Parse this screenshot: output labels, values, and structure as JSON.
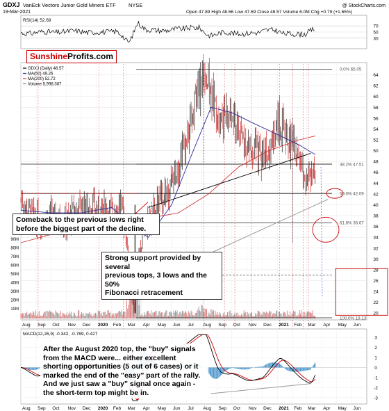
{
  "header": {
    "symbol": "GDXJ",
    "name": "VanEck Vectors Junior Gold Miners ETF",
    "exchange": "NYSE",
    "date": "19-Mar-2021",
    "copyright": "@ StockCharts.com",
    "quote": "Open 47.89  High 48.66  Low 47.69  Close 48.57  Volume 6.0M  Chg +0.79 (+1.65%)"
  },
  "brand": {
    "part1": "Sunshine",
    "part2": "Profits.com"
  },
  "rsi_panel": {
    "label": "RSI(14) 52.69",
    "ticks": [
      "70",
      "50",
      "30"
    ],
    "levels": [
      70,
      50,
      30
    ]
  },
  "price_panel": {
    "legend": [
      "GDXJ (Daily) 48.57",
      "MA(50) 49.26",
      "MA(200) 52.72",
      "Volume 5,998,387"
    ],
    "y_ticks": [
      20,
      22,
      24,
      26,
      28,
      30,
      32,
      34,
      36,
      38,
      40,
      42,
      44,
      46,
      48,
      50,
      52,
      54,
      56,
      58,
      60,
      62,
      64
    ],
    "fib_labels": [
      "0.0% 65.05",
      "38.2% 47.51",
      "50.0% 42.09",
      "61.8% 36.67",
      "100.0% 19.13"
    ],
    "fib_levels": [
      65.05,
      47.51,
      42.09,
      36.67,
      19.13
    ],
    "volume_ticks": [
      "90M",
      "80M",
      "70M",
      "60M",
      "50M",
      "40M",
      "30M",
      "20M",
      "10M"
    ]
  },
  "macd_panel": {
    "label": "MACD(12,26,9) -0.342, -0.769, 0.427",
    "y_ticks": [
      "3",
      "2",
      "1",
      "0",
      "-1",
      "-2",
      "-3"
    ]
  },
  "x_axis": {
    "labels": [
      "Aug",
      "Sep",
      "Oct",
      "Nov",
      "Dec",
      "2020",
      "Feb",
      "Mar",
      "Apr",
      "May",
      "Jun",
      "Jul",
      "Aug",
      "Sep",
      "Oct",
      "Nov",
      "Dec",
      "2021",
      "Feb",
      "Mar",
      "Apr",
      "May",
      "Jun"
    ]
  },
  "callouts": {
    "comeback": [
      "Comeback to the previous lows right",
      "before the biggest part of the decline."
    ],
    "support": [
      "Strong support provided by several",
      "previous tops, 3 lows and the 50%",
      "Fibonacci retracement"
    ],
    "macd": [
      "After the August 2020 top, the \"buy\" signals",
      "from the MACD were... either excellent",
      "shorting opportunities (5 out of 6 cases) or it",
      "marked the end of the \"easy\" part of the rally.",
      "And we just saw a \"buy\" signal once again -",
      "the short-term top might be in."
    ]
  },
  "chart_data": {
    "type": "line",
    "series": [
      {
        "name": "GDXJ (Daily) 48.57",
        "x": [
          "2019-08-01",
          "2019-09-01",
          "2019-10-01",
          "2019-11-01",
          "2019-12-01",
          "2020-01-01",
          "2020-02-01",
          "2020-02-20",
          "2020-03-01",
          "2020-03-16",
          "2020-04-01",
          "2020-05-01",
          "2020-06-01",
          "2020-07-01",
          "2020-08-05",
          "2020-09-01",
          "2020-10-01",
          "2020-11-01",
          "2020-12-01",
          "2021-01-05",
          "2021-02-01",
          "2021-03-08",
          "2021-03-19"
        ],
        "values": [
          41,
          37,
          38,
          37,
          40,
          39,
          39,
          40,
          35,
          20.5,
          34,
          40,
          44,
          52,
          65,
          57,
          56,
          51,
          49,
          55,
          51,
          44.5,
          48.57
        ]
      },
      {
        "name": "MA(50) 49.26",
        "x": [
          "2019-08-01",
          "2019-10-01",
          "2019-12-01",
          "2020-02-01",
          "2020-03-15",
          "2020-04-15",
          "2020-06-01",
          "2020-07-15",
          "2020-08-20",
          "2020-10-01",
          "2020-11-15",
          "2021-01-01",
          "2021-02-15",
          "2021-03-19"
        ],
        "values": [
          39,
          38.5,
          38.5,
          39.5,
          36,
          34,
          40,
          50,
          58,
          57,
          55,
          53,
          51,
          49.26
        ]
      },
      {
        "name": "MA(200) 52.72",
        "x": [
          "2019-08-01",
          "2019-12-01",
          "2020-02-15",
          "2020-04-15",
          "2020-06-15",
          "2020-08-15",
          "2020-10-15",
          "2020-12-15",
          "2021-02-15",
          "2021-03-19"
        ],
        "values": [
          33,
          36,
          38,
          37.5,
          38.5,
          42,
          47,
          50,
          52,
          52.72
        ]
      }
    ],
    "rsi": {
      "name": "RSI(14) 52.69",
      "last": 52.69
    },
    "macd": {
      "name": "MACD(12,26,9) -0.342, -0.769, 0.427",
      "macd": -0.342,
      "signal": -0.769,
      "histogram": 0.427
    },
    "fibonacci": [
      {
        "label": "0.0%",
        "value": 65.05
      },
      {
        "label": "38.2%",
        "value": 47.51
      },
      {
        "label": "50.0%",
        "value": 42.09
      },
      {
        "label": "61.8%",
        "value": 36.67
      },
      {
        "label": "100.0%",
        "value": 19.13
      }
    ],
    "ylim": [
      19,
      66
    ],
    "colors": {
      "price": "#000000",
      "up": "#000000",
      "down": "#cc0000",
      "ma50": "#2b2b9f",
      "ma200": "#cc3333",
      "macd_hist": "#3a8dc9",
      "annot": "#cc0000"
    }
  }
}
